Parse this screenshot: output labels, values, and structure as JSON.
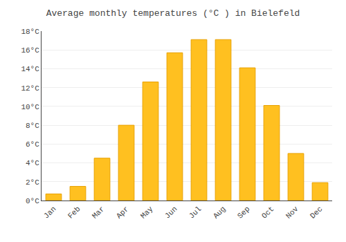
{
  "chart_data": {
    "type": "bar",
    "title": "Average monthly temperatures (°C ) in Bielefeld",
    "categories": [
      "Jan",
      "Feb",
      "Mar",
      "Apr",
      "May",
      "Jun",
      "Jul",
      "Aug",
      "Sep",
      "Oct",
      "Nov",
      "Dec"
    ],
    "values": [
      0.7,
      1.5,
      4.5,
      8.0,
      12.6,
      15.7,
      17.1,
      17.1,
      14.1,
      10.1,
      5.0,
      1.9
    ],
    "color": "#FFC020",
    "ylim": [
      0,
      18
    ],
    "yticks": [
      {
        "value": 0,
        "label": "0°C"
      },
      {
        "value": 2,
        "label": "2°C"
      },
      {
        "value": 4,
        "label": "4°C"
      },
      {
        "value": 6,
        "label": "6°C"
      },
      {
        "value": 8,
        "label": "8°C"
      },
      {
        "value": 10,
        "label": "10°C"
      },
      {
        "value": 12,
        "label": "12°C"
      },
      {
        "value": 14,
        "label": "14°C"
      },
      {
        "value": 16,
        "label": "16°C"
      },
      {
        "value": 18,
        "label": "18°C"
      }
    ],
    "grid": true
  }
}
